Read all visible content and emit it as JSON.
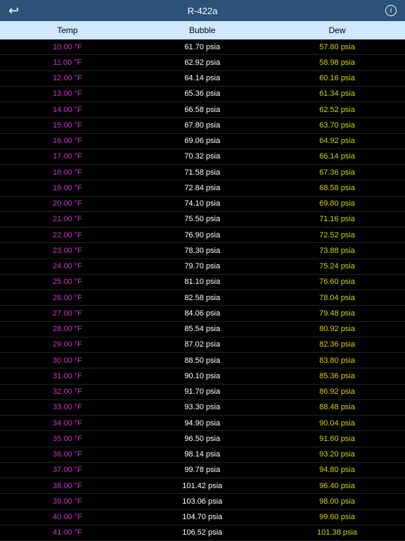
{
  "nav": {
    "title": "R-422a"
  },
  "header": {
    "temp": "Temp",
    "bubble": "Bubble",
    "dew": "Dew"
  },
  "colors": {
    "nav_bg": "#2b5278",
    "header_bg": "#cfe8ff",
    "temp_color": "#cc33cc",
    "bubble_color": "#ffffff",
    "dew_color": "#d4d400",
    "row_border": "#222222",
    "bg": "#000000"
  },
  "rows": [
    {
      "temp": "10.00 °F",
      "bubble": "61.70 psia",
      "dew": "57.80 psia"
    },
    {
      "temp": "11.00 °F",
      "bubble": "62.92 psia",
      "dew": "58.98 psia"
    },
    {
      "temp": "12.00 °F",
      "bubble": "64.14 psia",
      "dew": "60.16 psia"
    },
    {
      "temp": "13.00 °F",
      "bubble": "65.36 psia",
      "dew": "61.34 psia"
    },
    {
      "temp": "14.00 °F",
      "bubble": "66.58 psia",
      "dew": "62.52 psia"
    },
    {
      "temp": "15.00 °F",
      "bubble": "67.80 psia",
      "dew": "63.70 psia"
    },
    {
      "temp": "16.00 °F",
      "bubble": "69.06 psia",
      "dew": "64.92 psia"
    },
    {
      "temp": "17.00 °F",
      "bubble": "70.32 psia",
      "dew": "66.14 psia"
    },
    {
      "temp": "18.00 °F",
      "bubble": "71.58 psia",
      "dew": "67.36 psia"
    },
    {
      "temp": "19.00 °F",
      "bubble": "72.84 psia",
      "dew": "68.58 psia"
    },
    {
      "temp": "20.00 °F",
      "bubble": "74.10 psia",
      "dew": "69.80 psia"
    },
    {
      "temp": "21.00 °F",
      "bubble": "75.50 psia",
      "dew": "71.16 psia"
    },
    {
      "temp": "22.00 °F",
      "bubble": "76.90 psia",
      "dew": "72.52 psia"
    },
    {
      "temp": "23.00 °F",
      "bubble": "78.30 psia",
      "dew": "73.88 psia"
    },
    {
      "temp": "24.00 °F",
      "bubble": "79.70 psia",
      "dew": "75.24 psia"
    },
    {
      "temp": "25.00 °F",
      "bubble": "81.10 psia",
      "dew": "76.60 psia"
    },
    {
      "temp": "26.00 °F",
      "bubble": "82.58 psia",
      "dew": "78.04 psia"
    },
    {
      "temp": "27.00 °F",
      "bubble": "84.06 psia",
      "dew": "79.48 psia"
    },
    {
      "temp": "28.00 °F",
      "bubble": "85.54 psia",
      "dew": "80.92 psia"
    },
    {
      "temp": "29.00 °F",
      "bubble": "87.02 psia",
      "dew": "82.36 psia"
    },
    {
      "temp": "30.00 °F",
      "bubble": "88.50 psia",
      "dew": "83.80 psia"
    },
    {
      "temp": "31.00 °F",
      "bubble": "90.10 psia",
      "dew": "85.36 psia"
    },
    {
      "temp": "32.00 °F",
      "bubble": "91.70 psia",
      "dew": "86.92 psia"
    },
    {
      "temp": "33.00 °F",
      "bubble": "93.30 psia",
      "dew": "88.48 psia"
    },
    {
      "temp": "34.00 °F",
      "bubble": "94.90 psia",
      "dew": "90.04 psia"
    },
    {
      "temp": "35.00 °F",
      "bubble": "96.50 psia",
      "dew": "91.60 psia"
    },
    {
      "temp": "36.00 °F",
      "bubble": "98.14 psia",
      "dew": "93.20 psia"
    },
    {
      "temp": "37.00 °F",
      "bubble": "99.78 psia",
      "dew": "94.80 psia"
    },
    {
      "temp": "38.00 °F",
      "bubble": "101.42 psia",
      "dew": "96.40 psia"
    },
    {
      "temp": "39.00 °F",
      "bubble": "103.06 psia",
      "dew": "98.00 psia"
    },
    {
      "temp": "40.00 °F",
      "bubble": "104.70 psia",
      "dew": "99.60 psia"
    },
    {
      "temp": "41.00 °F",
      "bubble": "106.52 psia",
      "dew": "101.38 psia"
    }
  ]
}
